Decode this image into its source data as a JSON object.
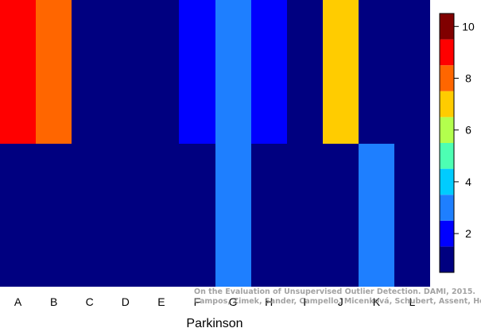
{
  "chart_data": {
    "type": "heatmap",
    "xlabel": "Parkinson",
    "categories": [
      "A",
      "B",
      "C",
      "D",
      "E",
      "F",
      "G",
      "H",
      "I",
      "J",
      "K",
      "L"
    ],
    "rows": [
      "top",
      "bottom"
    ],
    "values": [
      [
        9,
        8,
        1,
        1,
        1,
        2,
        3,
        2,
        1,
        7,
        1,
        1
      ],
      [
        1,
        1,
        1,
        1,
        1,
        1,
        3,
        1,
        1,
        1,
        3,
        1
      ]
    ],
    "colorbar": {
      "ticks": [
        2,
        4,
        6,
        8,
        10
      ],
      "levels": [
        1,
        2,
        3,
        4,
        5,
        6,
        7,
        8,
        9,
        10
      ],
      "colors": [
        "#000080",
        "#0000ff",
        "#1e7fff",
        "#00ccff",
        "#4dffb3",
        "#b3ff4d",
        "#ffcc00",
        "#ff6600",
        "#ff0000",
        "#800000"
      ]
    }
  },
  "watermark": {
    "line1": "On the Evaluation of Unsupervised Outlier Detection. DAMI, 2015.",
    "line2": "Campos, Zimek, Sander, Campello, Micenková, Schubert, Assent, Houle"
  }
}
